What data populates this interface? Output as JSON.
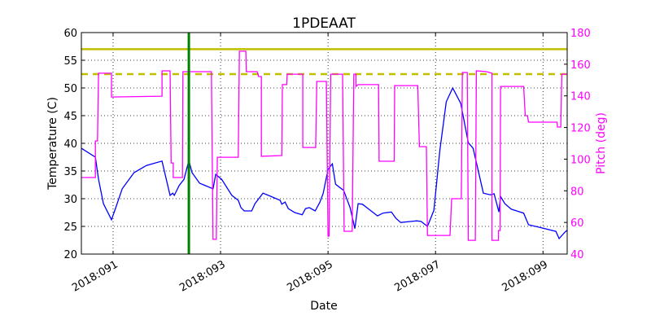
{
  "chart_data": {
    "type": "line",
    "title": "1PDEAAT",
    "xlabel": "Date",
    "ylabel": "Temperature (C)",
    "y2label": "Pitch (deg)",
    "xlim": [
      90.41,
      99.45
    ],
    "ylim": [
      20,
      60
    ],
    "y2lim": [
      40,
      180
    ],
    "grid": true,
    "x_ticks": [
      {
        "value": 91,
        "label": "2018:091"
      },
      {
        "value": 93,
        "label": "2018:093"
      },
      {
        "value": 95,
        "label": "2018:095"
      },
      {
        "value": 97,
        "label": "2018:097"
      },
      {
        "value": 99,
        "label": "2018:099"
      }
    ],
    "y_ticks": [
      20,
      25,
      30,
      35,
      40,
      45,
      50,
      55,
      60
    ],
    "y2_ticks": [
      40,
      60,
      80,
      100,
      120,
      140,
      160,
      180
    ],
    "colors": {
      "temperature": "#0000ff",
      "pitch": "#ff00ff",
      "limit": "#bfbf00",
      "marker": "#008000",
      "y2_axis": "#ff00ff"
    },
    "limits": [
      {
        "value": 57,
        "style": "solid"
      },
      {
        "value": 52.5,
        "style": "dashed"
      }
    ],
    "vertical_marker": 92.41,
    "series": [
      {
        "axis": "left",
        "points": [
          [
            90.41,
            39.1
          ],
          [
            90.67,
            37.5
          ],
          [
            90.73,
            33.5
          ],
          [
            90.82,
            29.1
          ],
          [
            90.97,
            26.2
          ],
          [
            91.05,
            28.4
          ],
          [
            91.17,
            31.8
          ],
          [
            91.39,
            34.7
          ],
          [
            91.62,
            36.0
          ],
          [
            91.91,
            36.8
          ],
          [
            92.06,
            30.6
          ],
          [
            92.11,
            31.0
          ],
          [
            92.14,
            30.6
          ],
          [
            92.23,
            32.4
          ],
          [
            92.32,
            33.5
          ],
          [
            92.41,
            36.9
          ],
          [
            92.47,
            34.7
          ],
          [
            92.61,
            32.8
          ],
          [
            92.86,
            31.8
          ],
          [
            92.91,
            34.4
          ],
          [
            93.02,
            33.5
          ],
          [
            93.21,
            30.6
          ],
          [
            93.33,
            29.7
          ],
          [
            93.38,
            28.4
          ],
          [
            93.44,
            27.8
          ],
          [
            93.58,
            27.8
          ],
          [
            93.64,
            29.1
          ],
          [
            93.79,
            31.0
          ],
          [
            93.89,
            30.6
          ],
          [
            94.11,
            29.7
          ],
          [
            94.14,
            29.0
          ],
          [
            94.2,
            29.4
          ],
          [
            94.26,
            28.2
          ],
          [
            94.38,
            27.5
          ],
          [
            94.52,
            27.1
          ],
          [
            94.58,
            28.2
          ],
          [
            94.65,
            28.4
          ],
          [
            94.76,
            27.8
          ],
          [
            94.85,
            29.4
          ],
          [
            94.91,
            31.0
          ],
          [
            95.0,
            35.3
          ],
          [
            95.08,
            36.3
          ],
          [
            95.14,
            32.6
          ],
          [
            95.29,
            31.5
          ],
          [
            95.41,
            28.4
          ],
          [
            95.5,
            24.6
          ],
          [
            95.56,
            29.1
          ],
          [
            95.64,
            29.0
          ],
          [
            95.8,
            27.8
          ],
          [
            95.92,
            26.9
          ],
          [
            96.02,
            27.4
          ],
          [
            96.18,
            27.6
          ],
          [
            96.26,
            26.5
          ],
          [
            96.35,
            25.7
          ],
          [
            96.65,
            26.0
          ],
          [
            96.73,
            25.9
          ],
          [
            96.85,
            25.0
          ],
          [
            96.97,
            27.9
          ],
          [
            97.08,
            38.7
          ],
          [
            97.2,
            47.5
          ],
          [
            97.32,
            50.0
          ],
          [
            97.47,
            47.2
          ],
          [
            97.61,
            40.1
          ],
          [
            97.7,
            39.1
          ],
          [
            97.89,
            31.0
          ],
          [
            98.02,
            30.7
          ],
          [
            98.09,
            30.9
          ],
          [
            98.18,
            27.6
          ],
          [
            98.21,
            30.4
          ],
          [
            98.29,
            29.1
          ],
          [
            98.41,
            28.1
          ],
          [
            98.64,
            27.4
          ],
          [
            98.73,
            25.3
          ],
          [
            98.91,
            24.9
          ],
          [
            99.24,
            24.1
          ],
          [
            99.3,
            22.8
          ],
          [
            99.41,
            24.0
          ],
          [
            99.45,
            24.3
          ]
        ]
      },
      {
        "axis": "right",
        "points": [
          [
            90.41,
            88.4
          ],
          [
            90.67,
            88.4
          ],
          [
            90.67,
            111.5
          ],
          [
            90.71,
            111.5
          ],
          [
            90.73,
            154.3
          ],
          [
            90.97,
            154.3
          ],
          [
            90.97,
            139.3
          ],
          [
            91.91,
            139.8
          ],
          [
            91.91,
            155.8
          ],
          [
            92.06,
            155.8
          ],
          [
            92.08,
            97.6
          ],
          [
            92.12,
            97.6
          ],
          [
            92.12,
            88.4
          ],
          [
            92.29,
            88.4
          ],
          [
            92.3,
            155.3
          ],
          [
            92.83,
            155.3
          ],
          [
            92.86,
            49.3
          ],
          [
            92.92,
            49.3
          ],
          [
            92.94,
            101.2
          ],
          [
            93.33,
            101.2
          ],
          [
            93.35,
            168.2
          ],
          [
            93.47,
            168.2
          ],
          [
            93.48,
            155.3
          ],
          [
            93.68,
            155.3
          ],
          [
            93.71,
            152.2
          ],
          [
            93.76,
            152.2
          ],
          [
            93.76,
            101.8
          ],
          [
            94.14,
            102.3
          ],
          [
            94.15,
            147.1
          ],
          [
            94.23,
            147.1
          ],
          [
            94.24,
            153.7
          ],
          [
            94.53,
            153.7
          ],
          [
            94.53,
            107.4
          ],
          [
            94.77,
            107.4
          ],
          [
            94.79,
            149.1
          ],
          [
            94.97,
            149.1
          ],
          [
            95.0,
            51.3
          ],
          [
            95.02,
            51.3
          ],
          [
            95.05,
            153.7
          ],
          [
            95.27,
            153.7
          ],
          [
            95.3,
            54.4
          ],
          [
            95.45,
            54.4
          ],
          [
            95.48,
            153.7
          ],
          [
            95.52,
            153.7
          ],
          [
            95.52,
            146.0
          ],
          [
            95.56,
            147.1
          ],
          [
            95.94,
            147.1
          ],
          [
            95.95,
            98.7
          ],
          [
            96.23,
            98.7
          ],
          [
            96.24,
            146.5
          ],
          [
            96.67,
            146.5
          ],
          [
            96.7,
            107.9
          ],
          [
            96.83,
            107.9
          ],
          [
            96.85,
            51.8
          ],
          [
            97.27,
            51.8
          ],
          [
            97.3,
            75.0
          ],
          [
            97.48,
            75.0
          ],
          [
            97.5,
            154.8
          ],
          [
            97.59,
            154.8
          ],
          [
            97.61,
            48.7
          ],
          [
            97.74,
            48.7
          ],
          [
            97.76,
            155.8
          ],
          [
            97.95,
            155.3
          ],
          [
            98.05,
            154.3
          ],
          [
            98.05,
            48.7
          ],
          [
            98.17,
            48.7
          ],
          [
            98.17,
            54.9
          ],
          [
            98.2,
            54.9
          ],
          [
            98.21,
            146.0
          ],
          [
            98.64,
            146.0
          ],
          [
            98.67,
            127.5
          ],
          [
            98.71,
            127.5
          ],
          [
            98.73,
            123.4
          ],
          [
            99.26,
            123.4
          ],
          [
            99.27,
            120.3
          ],
          [
            99.33,
            120.3
          ],
          [
            99.35,
            153.7
          ],
          [
            99.45,
            153.7
          ]
        ]
      }
    ]
  }
}
